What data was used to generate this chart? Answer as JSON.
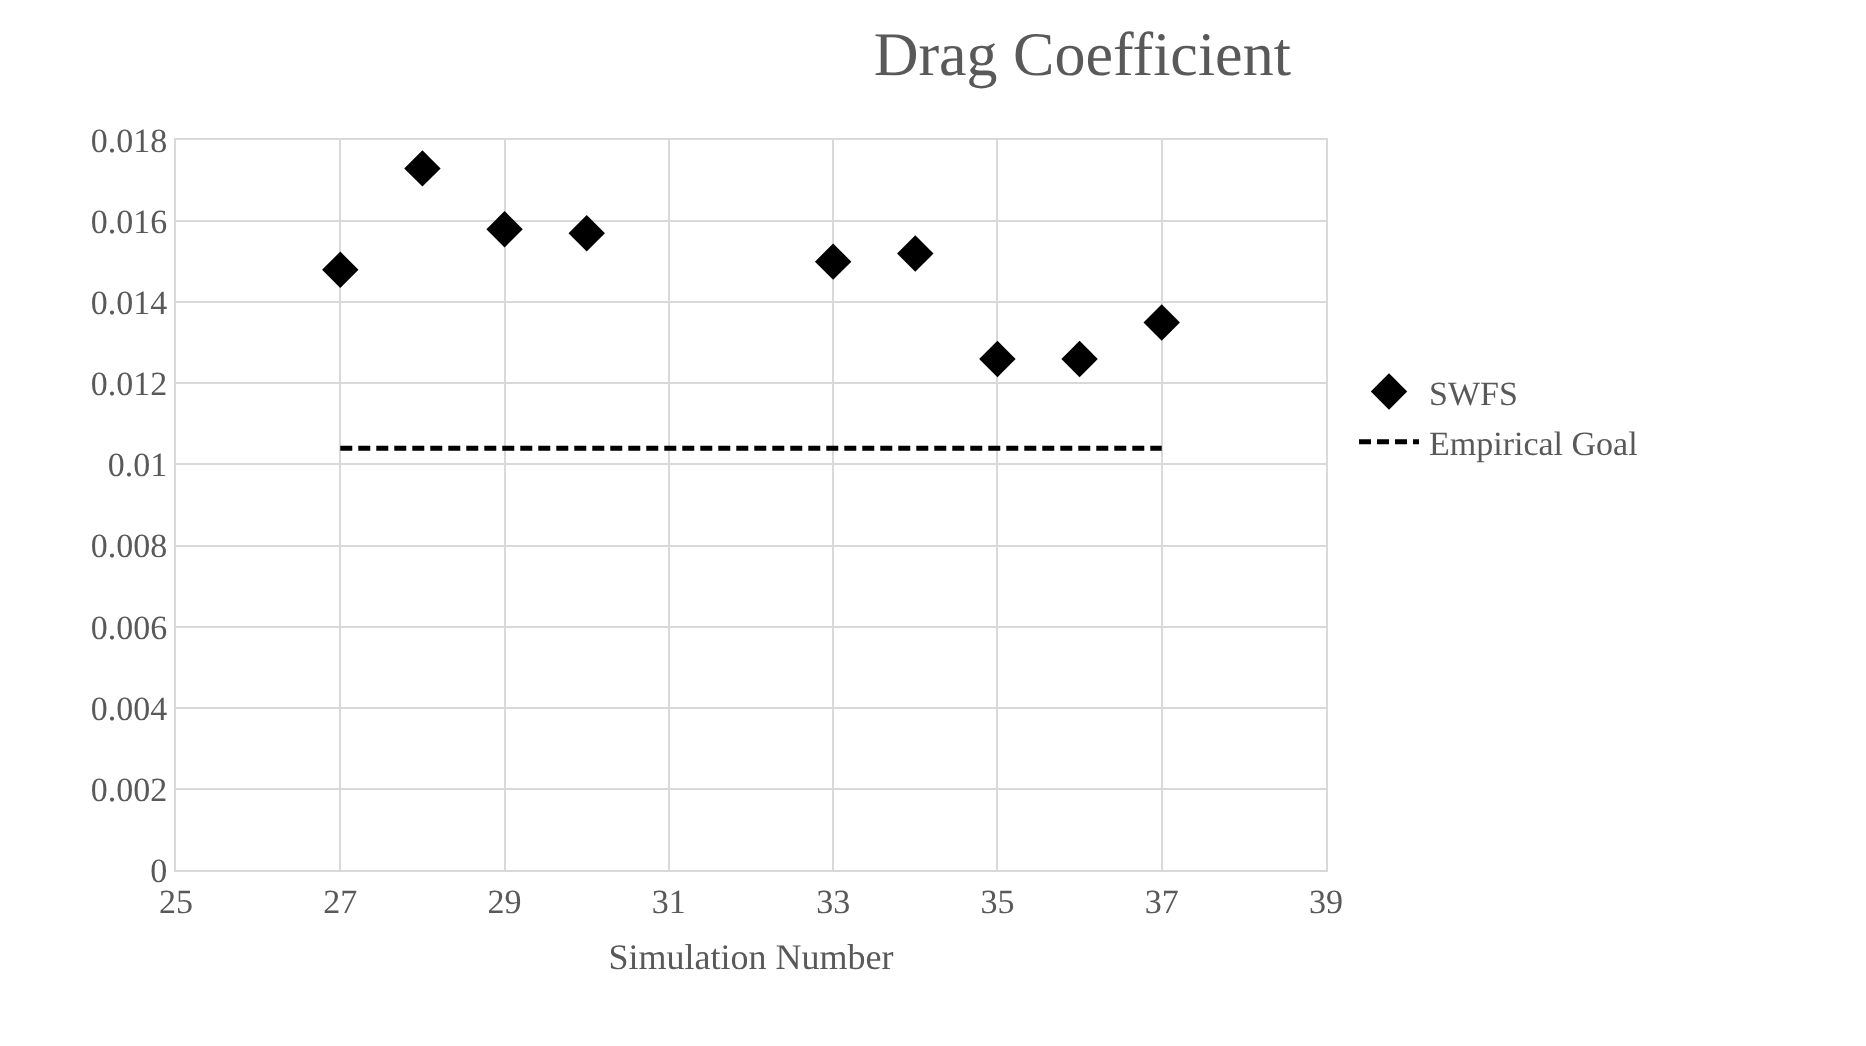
{
  "chart_data": {
    "type": "scatter",
    "title": "Drag Coefficient",
    "xlabel": "Simulation Number",
    "xlim": [
      25,
      39
    ],
    "xticks": [
      25,
      27,
      29,
      31,
      33,
      35,
      37,
      39
    ],
    "ylim": [
      0,
      0.018
    ],
    "yticks": [
      0,
      0.002,
      0.004,
      0.006,
      0.008,
      0.01,
      0.012,
      0.014,
      0.016,
      0.018
    ],
    "grid": true,
    "legend": "right",
    "marker": "diamond",
    "series": [
      {
        "name": "SWFS",
        "color": "#000000",
        "x": [
          27,
          28,
          29,
          30,
          33,
          34,
          35,
          36,
          37
        ],
        "values": [
          0.0148,
          0.0173,
          0.0158,
          0.0157,
          0.015,
          0.0152,
          0.0126,
          0.0126,
          0.0135
        ]
      },
      {
        "name": "Empirical Goal",
        "type": "line",
        "line_style": "dashed",
        "marker": "none",
        "color": "#000000",
        "x": [
          27,
          37
        ],
        "values": [
          0.0104,
          0.0104
        ]
      }
    ]
  }
}
